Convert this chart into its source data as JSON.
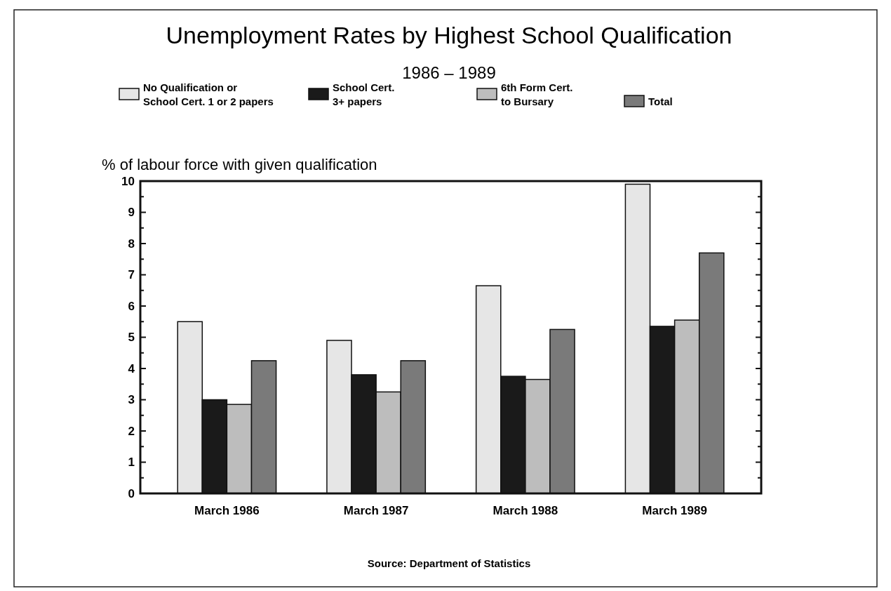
{
  "chart_data": {
    "type": "bar",
    "title": "Unemployment Rates by Highest School Qualification",
    "subtitle": "1986 – 1989",
    "ylabel": "% of labour force with given qualification",
    "categories": [
      "March 1986",
      "March 1987",
      "March 1988",
      "March 1989"
    ],
    "series": [
      {
        "name": "No Qualification or\nSchool Cert. 1 or 2 papers",
        "color": "#e6e6e6",
        "values": [
          5.5,
          4.9,
          6.65,
          9.9
        ]
      },
      {
        "name": "School Cert.\n3+ papers",
        "color": "#1a1a1a",
        "values": [
          3.0,
          3.8,
          3.75,
          5.35
        ]
      },
      {
        "name": "6th Form Cert.\nto Bursary",
        "color": "#bdbdbd",
        "values": [
          2.85,
          3.25,
          3.65,
          5.55
        ]
      },
      {
        "name": "Total",
        "color": "#7a7a7a",
        "values": [
          4.25,
          4.25,
          5.25,
          7.7
        ]
      }
    ],
    "ylim": [
      0,
      10
    ],
    "yticks": [
      0,
      1,
      2,
      3,
      4,
      5,
      6,
      7,
      8,
      9,
      10
    ],
    "grid": false,
    "legend": "top",
    "annotations": [
      "Source: Department of Statistics"
    ]
  }
}
